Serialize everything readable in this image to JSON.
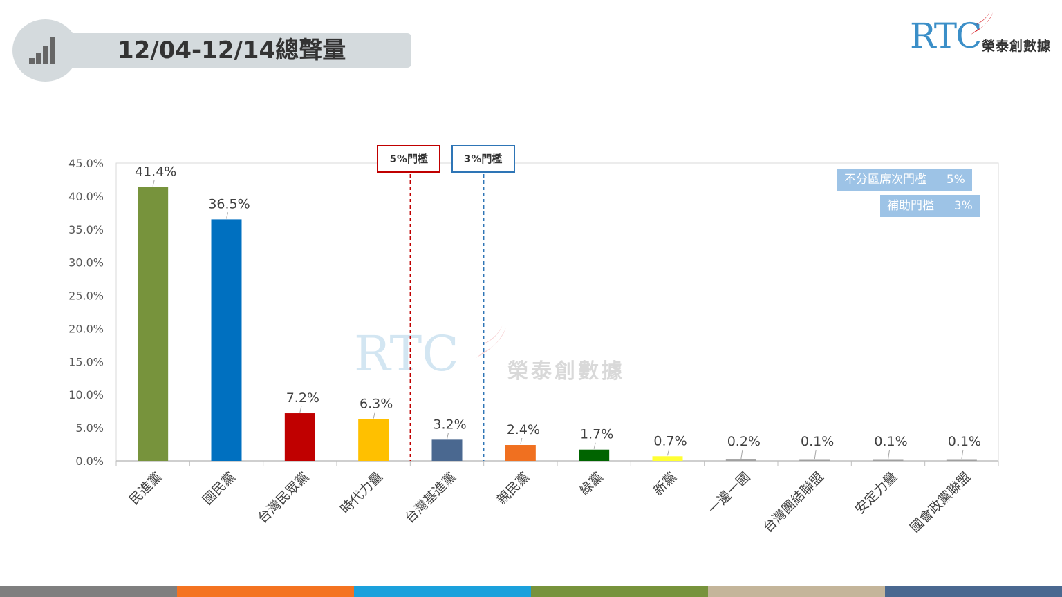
{
  "header": {
    "title": "12/04-12/14總聲量",
    "icon": "signal-bars-icon"
  },
  "logo": {
    "brand": "RTC",
    "name": "榮泰創數據"
  },
  "watermark": {
    "brand": "RTC",
    "name": "榮泰創數據"
  },
  "thresholds": {
    "five": {
      "label": "5%門檻",
      "color": "#c00000"
    },
    "three": {
      "label": "3%門檻",
      "color": "#2e75b6"
    }
  },
  "legend": {
    "items": [
      {
        "label": "不分區席次門檻",
        "value": "5%"
      },
      {
        "label": "補助門檻",
        "value": "3%"
      }
    ]
  },
  "chart_data": {
    "type": "bar",
    "categories": [
      "民進黨",
      "國民黨",
      "台灣民眾黨",
      "時代力量",
      "台灣基進黨",
      "親民黨",
      "綠黨",
      "新黨",
      "一邊一國",
      "台灣團結聯盟",
      "安定力量",
      "國會政黨聯盟"
    ],
    "values": [
      41.4,
      36.5,
      7.2,
      6.3,
      3.2,
      2.4,
      1.7,
      0.7,
      0.2,
      0.1,
      0.1,
      0.1
    ],
    "data_labels": [
      "41.4%",
      "36.5%",
      "7.2%",
      "6.3%",
      "3.2%",
      "2.4%",
      "1.7%",
      "0.7%",
      "0.2%",
      "0.1%",
      "0.1%",
      "0.1%"
    ],
    "colors": [
      "#77933c",
      "#0070c0",
      "#c00000",
      "#ffc000",
      "#4a6890",
      "#f07020",
      "#006400",
      "#ffff33",
      "#a0a0a0",
      "#a0a0a0",
      "#a0a0a0",
      "#a0a0a0"
    ],
    "ylim": [
      0,
      45
    ],
    "yticks": [
      "0.0%",
      "5.0%",
      "10.0%",
      "15.0%",
      "20.0%",
      "25.0%",
      "30.0%",
      "35.0%",
      "40.0%",
      "45.0%"
    ],
    "threshold_positions": [
      "after:時代力量",
      "after:台灣基進黨"
    ],
    "grid": false,
    "title": "",
    "xlabel": "",
    "ylabel": ""
  },
  "footer_stripe_colors": [
    "#7f7f7f",
    "#f47321",
    "#1ba1dc",
    "#77933c",
    "#c4b59a",
    "#4a6890"
  ]
}
